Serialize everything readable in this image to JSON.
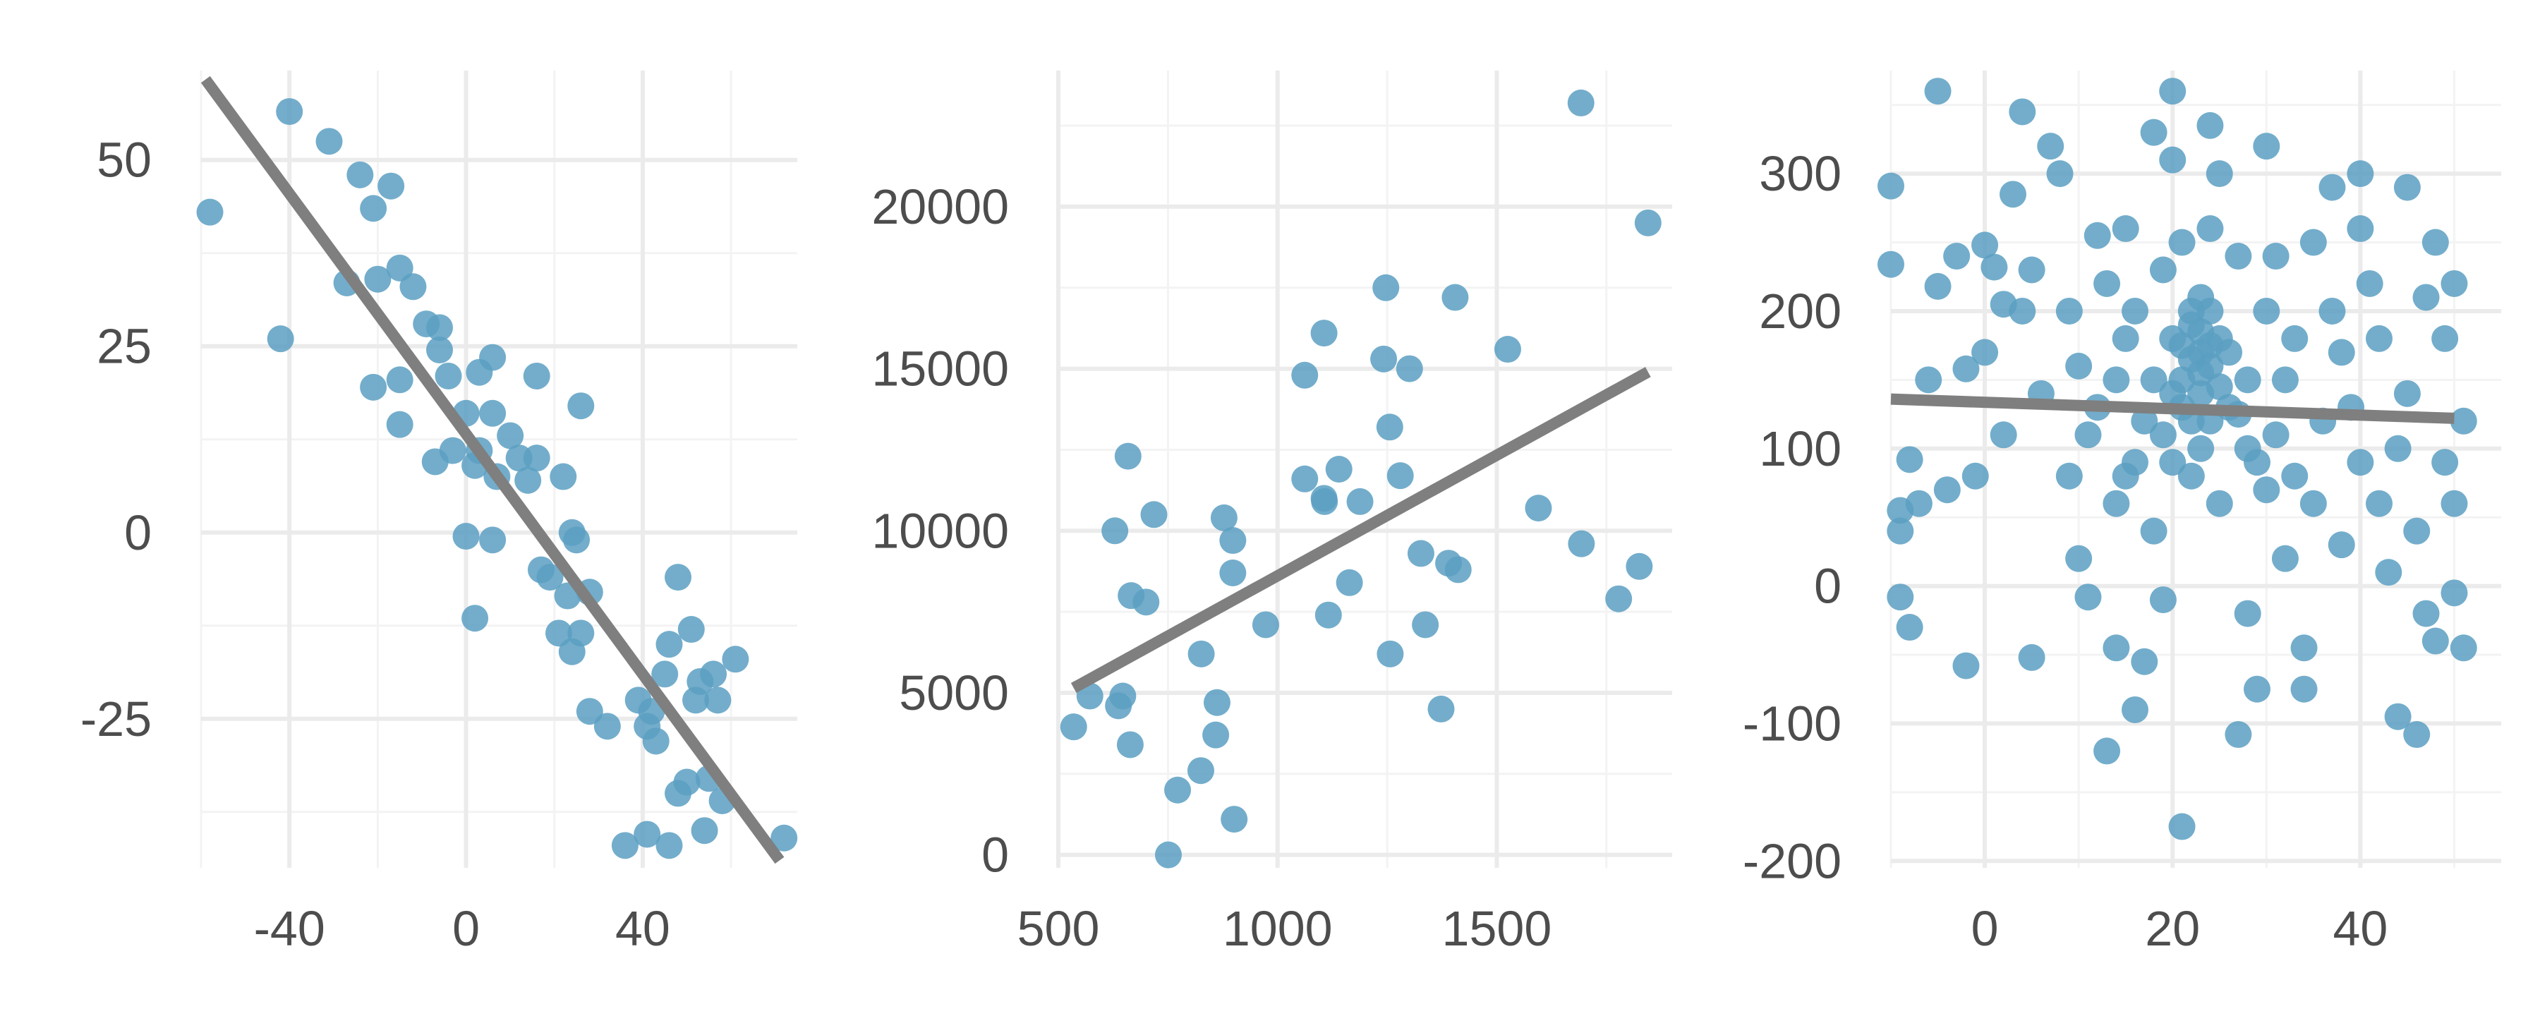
{
  "colors": {
    "points": "#5b9fc2",
    "line": "#7f7f7f",
    "grid": "#ebebeb",
    "text": "#4d4d4d"
  },
  "chart_data": [
    {
      "type": "scatter",
      "title": "",
      "xlabel": "",
      "ylabel": "",
      "xlim": [
        -60,
        75
      ],
      "ylim": [
        -45,
        62
      ],
      "xticks": [
        -40,
        0,
        40
      ],
      "yticks": [
        50,
        25,
        0,
        -25
      ],
      "xtick_labels": [
        "-40",
        "0",
        "40"
      ],
      "ytick_labels": [
        "50",
        "25",
        "0",
        "-25"
      ],
      "grid": true,
      "fit_line": {
        "x": [
          -59,
          71
        ],
        "y": [
          60.8,
          -44
        ]
      },
      "points": [
        [
          -58,
          43
        ],
        [
          -40,
          56.5
        ],
        [
          -42,
          26
        ],
        [
          -31,
          52.5
        ],
        [
          -24,
          48
        ],
        [
          -21,
          43.5
        ],
        [
          -17,
          46.5
        ],
        [
          -27,
          33.5
        ],
        [
          -20,
          34
        ],
        [
          -15,
          35.5
        ],
        [
          -12,
          33
        ],
        [
          -9,
          28
        ],
        [
          -6,
          27.5
        ],
        [
          -15,
          20.5
        ],
        [
          -21,
          19.5
        ],
        [
          -15,
          14.5
        ],
        [
          -6,
          24.5
        ],
        [
          -4,
          21
        ],
        [
          -7,
          9.5
        ],
        [
          -3,
          11
        ],
        [
          0,
          16
        ],
        [
          3,
          21.5
        ],
        [
          6,
          16
        ],
        [
          6,
          23.5
        ],
        [
          3,
          11
        ],
        [
          7,
          7.5
        ],
        [
          10,
          13
        ],
        [
          12,
          10
        ],
        [
          14,
          7
        ],
        [
          16,
          10
        ],
        [
          2,
          9
        ],
        [
          0,
          -0.5
        ],
        [
          6,
          -1
        ],
        [
          2,
          -11.5
        ],
        [
          16,
          21
        ],
        [
          22,
          7.5
        ],
        [
          26,
          17
        ],
        [
          24,
          0
        ],
        [
          25,
          -1
        ],
        [
          17,
          -5
        ],
        [
          19,
          -6
        ],
        [
          21,
          -13.5
        ],
        [
          23,
          -8.5
        ],
        [
          26,
          -13.5
        ],
        [
          24,
          -16
        ],
        [
          28,
          -8
        ],
        [
          28,
          -24
        ],
        [
          32,
          -26
        ],
        [
          36,
          -42
        ],
        [
          39,
          -22.5
        ],
        [
          41,
          -40.5
        ],
        [
          41,
          -26
        ],
        [
          43,
          -28
        ],
        [
          42,
          -24
        ],
        [
          45,
          -19
        ],
        [
          46,
          -15
        ],
        [
          46,
          -42
        ],
        [
          48,
          -35
        ],
        [
          50,
          -33.5
        ],
        [
          48,
          -6
        ],
        [
          51,
          -13
        ],
        [
          53,
          -20
        ],
        [
          52,
          -22.5
        ],
        [
          54,
          -40
        ],
        [
          55,
          -33
        ],
        [
          56,
          -19
        ],
        [
          57,
          -22.5
        ],
        [
          58,
          -36
        ],
        [
          61,
          -17
        ],
        [
          72,
          -41
        ]
      ]
    },
    {
      "type": "scatter",
      "title": "",
      "xlabel": "",
      "ylabel": "",
      "xlim": [
        500,
        1900
      ],
      "ylim": [
        -400,
        24200
      ],
      "xticks": [
        500,
        1000,
        1500
      ],
      "yticks": [
        20000,
        15000,
        10000,
        5000,
        0
      ],
      "xtick_labels": [
        "500",
        "1000",
        "1500"
      ],
      "ytick_labels": [
        "20000",
        "15000",
        "10000",
        "5000",
        "0"
      ],
      "grid": true,
      "fit_line": {
        "x": [
          535,
          1845
        ],
        "y": [
          5150,
          14900
        ]
      },
      "points": [
        [
          535,
          3950
        ],
        [
          572,
          4900
        ],
        [
          629,
          10000
        ],
        [
          637,
          4600
        ],
        [
          647,
          4900
        ],
        [
          659,
          12300
        ],
        [
          664,
          3400
        ],
        [
          666,
          8000
        ],
        [
          700,
          7800
        ],
        [
          718,
          10500
        ],
        [
          751,
          0
        ],
        [
          772,
          2000
        ],
        [
          825,
          2600
        ],
        [
          826,
          6200
        ],
        [
          859,
          3700
        ],
        [
          862,
          4700
        ],
        [
          878,
          10400
        ],
        [
          898,
          9700
        ],
        [
          898,
          8700
        ],
        [
          901,
          1100
        ],
        [
          973,
          7100
        ],
        [
          1062,
          11600
        ],
        [
          1062,
          14800
        ],
        [
          1106,
          16100
        ],
        [
          1106,
          11000
        ],
        [
          1107,
          10900
        ],
        [
          1116,
          7400
        ],
        [
          1140,
          11900
        ],
        [
          1164,
          8400
        ],
        [
          1188,
          10900
        ],
        [
          1247,
          17500
        ],
        [
          1242,
          15300
        ],
        [
          1256,
          13200
        ],
        [
          1257,
          6200
        ],
        [
          1280,
          11700
        ],
        [
          1301,
          15000
        ],
        [
          1327,
          9300
        ],
        [
          1337,
          7100
        ],
        [
          1373,
          4500
        ],
        [
          1390,
          9000
        ],
        [
          1412,
          8800
        ],
        [
          1405,
          17200
        ],
        [
          1525,
          15600
        ],
        [
          1595,
          10700
        ],
        [
          1692,
          23200
        ],
        [
          1693,
          9600
        ],
        [
          1778,
          7900
        ],
        [
          1825,
          8900
        ],
        [
          1845,
          19500
        ]
      ]
    },
    {
      "type": "scatter",
      "title": "",
      "xlabel": "",
      "ylabel": "",
      "xlim": [
        -10,
        55
      ],
      "ylim": [
        -205,
        375
      ],
      "xticks": [
        0,
        20,
        40
      ],
      "yticks": [
        300,
        200,
        100,
        0,
        -100,
        -200
      ],
      "xtick_labels": [
        "0",
        "20",
        "40"
      ],
      "ytick_labels": [
        "300",
        "200",
        "100",
        "0",
        "-100",
        "-200"
      ],
      "grid": true,
      "fit_line": {
        "x": [
          -10,
          50
        ],
        "y": [
          136,
          122
        ]
      },
      "points": [
        [
          -10,
          291
        ],
        [
          -10,
          234
        ],
        [
          -9,
          55
        ],
        [
          -9,
          -8
        ],
        [
          -8,
          -30
        ],
        [
          -9,
          40
        ],
        [
          -8,
          92
        ],
        [
          -7,
          60
        ],
        [
          -6,
          150
        ],
        [
          -5,
          360
        ],
        [
          -5,
          218
        ],
        [
          -4,
          70
        ],
        [
          -3,
          240
        ],
        [
          -2,
          -58
        ],
        [
          -2,
          158
        ],
        [
          -1,
          80
        ],
        [
          0,
          248
        ],
        [
          0,
          170
        ],
        [
          1,
          232
        ],
        [
          2,
          205
        ],
        [
          2,
          110
        ],
        [
          3,
          285
        ],
        [
          4,
          345
        ],
        [
          4,
          200
        ],
        [
          5,
          230
        ],
        [
          5,
          -52
        ],
        [
          6,
          140
        ],
        [
          7,
          320
        ],
        [
          8,
          300
        ],
        [
          9,
          200
        ],
        [
          9,
          80
        ],
        [
          10,
          160
        ],
        [
          10,
          20
        ],
        [
          11,
          -8
        ],
        [
          11,
          110
        ],
        [
          12,
          255
        ],
        [
          13,
          220
        ],
        [
          13,
          -120
        ],
        [
          14,
          60
        ],
        [
          14,
          -45
        ],
        [
          15,
          180
        ],
        [
          15,
          260
        ],
        [
          16,
          90
        ],
        [
          16,
          -90
        ],
        [
          17,
          120
        ],
        [
          17,
          -55
        ],
        [
          18,
          330
        ],
        [
          18,
          40
        ],
        [
          19,
          230
        ],
        [
          19,
          -10
        ],
        [
          20,
          360
        ],
        [
          20,
          310
        ],
        [
          20,
          180
        ],
        [
          21,
          -175
        ],
        [
          21,
          150
        ],
        [
          21,
          250
        ],
        [
          22,
          190
        ],
        [
          22,
          120
        ],
        [
          22,
          80
        ],
        [
          23,
          170
        ],
        [
          23,
          210
        ],
        [
          23,
          140
        ],
        [
          23,
          100
        ],
        [
          24,
          335
        ],
        [
          24,
          260
        ],
        [
          24,
          160
        ],
        [
          24,
          200
        ],
        [
          25,
          300
        ],
        [
          25,
          180
        ],
        [
          25,
          60
        ],
        [
          26,
          130
        ],
        [
          27,
          -108
        ],
        [
          27,
          240
        ],
        [
          28,
          150
        ],
        [
          28,
          -20
        ],
        [
          29,
          -75
        ],
        [
          29,
          90
        ],
        [
          30,
          200
        ],
        [
          30,
          320
        ],
        [
          31,
          110
        ],
        [
          31,
          240
        ],
        [
          32,
          150
        ],
        [
          32,
          20
        ],
        [
          33,
          180
        ],
        [
          33,
          80
        ],
        [
          34,
          -45
        ],
        [
          34,
          -75
        ],
        [
          35,
          250
        ],
        [
          35,
          60
        ],
        [
          36,
          120
        ],
        [
          37,
          290
        ],
        [
          37,
          200
        ],
        [
          38,
          30
        ],
        [
          38,
          170
        ],
        [
          39,
          130
        ],
        [
          40,
          300
        ],
        [
          40,
          260
        ],
        [
          40,
          90
        ],
        [
          41,
          220
        ],
        [
          42,
          60
        ],
        [
          42,
          180
        ],
        [
          43,
          10
        ],
        [
          44,
          -95
        ],
        [
          44,
          100
        ],
        [
          45,
          290
        ],
        [
          45,
          140
        ],
        [
          46,
          -108
        ],
        [
          46,
          40
        ],
        [
          47,
          210
        ],
        [
          47,
          -20
        ],
        [
          48,
          250
        ],
        [
          48,
          -40
        ],
        [
          49,
          180
        ],
        [
          49,
          90
        ],
        [
          50,
          -5
        ],
        [
          50,
          220
        ],
        [
          51,
          -45
        ],
        [
          51,
          120
        ],
        [
          50,
          60
        ],
        [
          12,
          130
        ],
        [
          20,
          140
        ],
        [
          21,
          175
        ],
        [
          22,
          165
        ],
        [
          23,
          155
        ],
        [
          24,
          175
        ],
        [
          25,
          145
        ],
        [
          22,
          200
        ],
        [
          21,
          130
        ],
        [
          24,
          120
        ],
        [
          23,
          185
        ],
        [
          19,
          110
        ],
        [
          26,
          170
        ],
        [
          18,
          150
        ],
        [
          20,
          90
        ],
        [
          27,
          125
        ],
        [
          16,
          200
        ],
        [
          28,
          100
        ],
        [
          15,
          80
        ],
        [
          30,
          70
        ],
        [
          14,
          150
        ]
      ]
    }
  ]
}
